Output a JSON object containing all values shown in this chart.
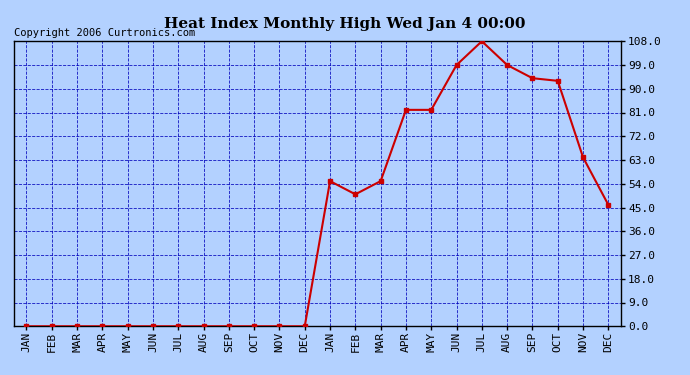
{
  "title": "Heat Index Monthly High Wed Jan 4 00:00",
  "copyright": "Copyright 2006 Curtronics.com",
  "x_labels": [
    "JAN",
    "FEB",
    "MAR",
    "APR",
    "MAY",
    "JUN",
    "JUL",
    "AUG",
    "SEP",
    "OCT",
    "NOV",
    "DEC",
    "JAN",
    "FEB",
    "MAR",
    "APR",
    "MAY",
    "JUN",
    "JUL",
    "AUG",
    "SEP",
    "OCT",
    "NOV",
    "DEC"
  ],
  "y_values": [
    0,
    0,
    0,
    0,
    0,
    0,
    0,
    0,
    0,
    0,
    0,
    0,
    55,
    50,
    55,
    82,
    82,
    99,
    108,
    99,
    94,
    93,
    64,
    46
  ],
  "y_min": 0.0,
  "y_max": 108.0,
  "y_ticks": [
    0.0,
    9.0,
    18.0,
    27.0,
    36.0,
    45.0,
    54.0,
    63.0,
    72.0,
    81.0,
    90.0,
    99.0,
    108.0
  ],
  "line_color": "#cc0000",
  "marker": "s",
  "marker_size": 3,
  "marker_color": "#cc0000",
  "bg_color": "#b3d1ff",
  "grid_color": "#0000bb",
  "border_color": "#000000",
  "title_fontsize": 11,
  "tick_fontsize": 8,
  "copyright_fontsize": 7.5
}
